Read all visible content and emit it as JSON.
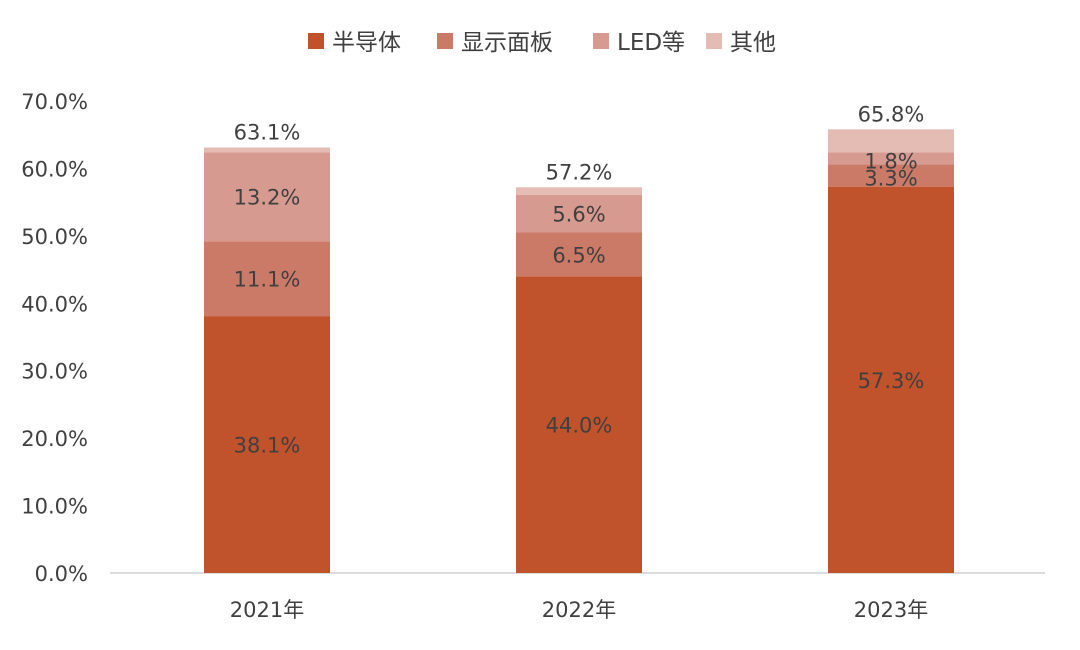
{
  "chart_data": {
    "type": "bar",
    "stacked": true,
    "categories": [
      "2021年",
      "2022年",
      "2023年"
    ],
    "series": [
      {
        "name": "半导体",
        "values": [
          38.1,
          44.0,
          57.3
        ],
        "color": "#c0522c",
        "labels": [
          "38.1%",
          "44.0%",
          "57.3%"
        ]
      },
      {
        "name": "显示面板",
        "values": [
          11.1,
          6.5,
          3.3
        ],
        "color": "#cc7a68",
        "labels": [
          "11.1%",
          "6.5%",
          "3.3%"
        ]
      },
      {
        "name": "LED等",
        "values": [
          13.2,
          5.6,
          1.8
        ],
        "color": "#d69a90",
        "labels": [
          "13.2%",
          "5.6%",
          "1.8%"
        ]
      },
      {
        "name": "其他",
        "values": [
          0.7,
          1.1,
          3.4
        ],
        "color": "#e5bcb4"
      }
    ],
    "totals": [
      "63.1%",
      "57.2%",
      "65.8%"
    ],
    "yticks": [
      "0.0%",
      "10.0%",
      "20.0%",
      "30.0%",
      "40.0%",
      "50.0%",
      "60.0%",
      "70.0%"
    ],
    "ylim": [
      0,
      70
    ],
    "grid": false,
    "legend_position": "top"
  }
}
